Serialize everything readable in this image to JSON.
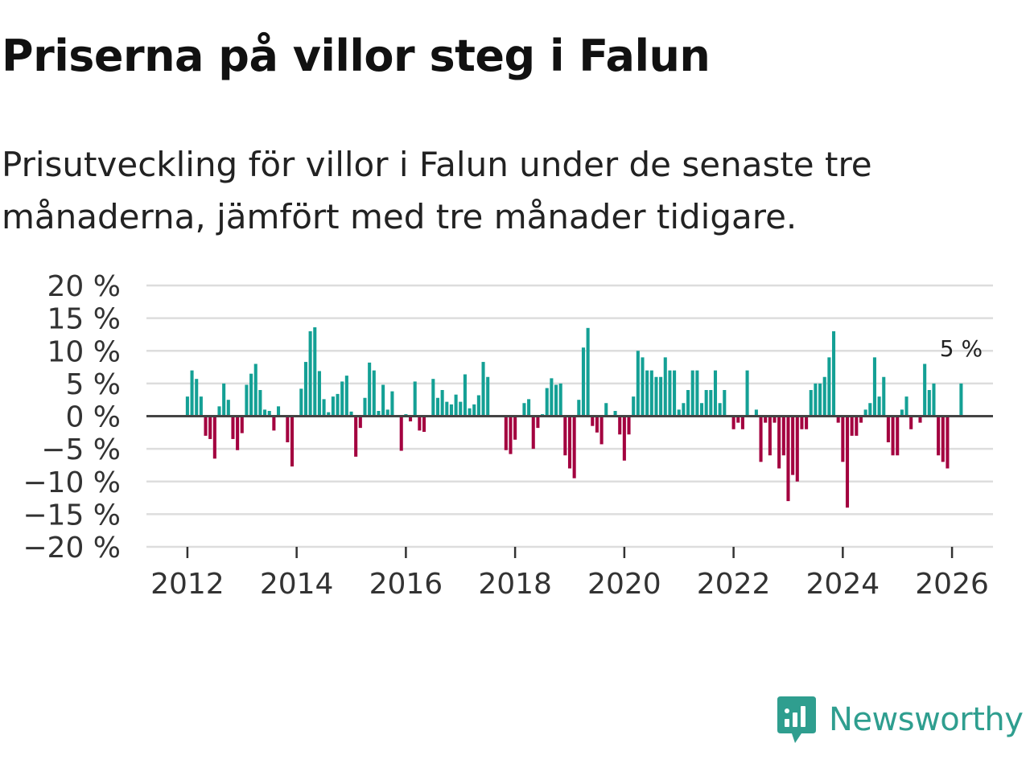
{
  "title": "Priserna på villor steg i Falun",
  "subtitle": "Prisutveckling för villor i Falun under de senaste tre månaderna, jämfört med tre månader tidigare.",
  "brand": {
    "name": "Newsworthy",
    "icon": "newsworthy-logo-icon"
  },
  "colors": {
    "positive": "#14a095",
    "negative": "#a3003f",
    "grid": "#dddddd",
    "zero": "#444444"
  },
  "chart_data": {
    "type": "bar",
    "title": "Priserna på villor steg i Falun",
    "xlabel": "",
    "ylabel": "",
    "ylim": [
      -20,
      20
    ],
    "yticks": [
      20,
      15,
      10,
      5,
      0,
      -5,
      -10,
      -15,
      -20
    ],
    "ytick_labels": [
      "20 %",
      "15 %",
      "10 %",
      "5 %",
      "0 %",
      "−5 %",
      "−10 %",
      "−15 %",
      "−20 %"
    ],
    "xticks": [
      2012,
      2014,
      2016,
      2018,
      2020,
      2022,
      2024,
      2026
    ],
    "xtick_labels": [
      "2012",
      "2014",
      "2016",
      "2018",
      "2020",
      "2022",
      "2024",
      "2026"
    ],
    "xlim": [
      2011.25,
      2026.75
    ],
    "start": [
      2012,
      1
    ],
    "annotation": {
      "text": "5 %",
      "month": "2026-01"
    },
    "values": [
      3,
      7,
      5.7,
      3,
      -3,
      -3.5,
      -6.5,
      1.5,
      5,
      2.5,
      -3.5,
      -5.2,
      -2.6,
      4.8,
      6.5,
      8,
      4,
      1,
      0.8,
      -2.2,
      1.5,
      0,
      -4,
      -7.7,
      0,
      4.2,
      8.3,
      13,
      13.6,
      6.9,
      2.6,
      0.6,
      3,
      3.4,
      5.3,
      6.2,
      0.7,
      -6.2,
      -1.8,
      2.8,
      8.2,
      7,
      0.8,
      4.8,
      1,
      3.8,
      0,
      -5.3,
      0.3,
      -0.8,
      5.3,
      -2.2,
      -2.4,
      0,
      5.7,
      2.8,
      4,
      2.2,
      1.8,
      3.3,
      2.2,
      6.4,
      1.2,
      1.8,
      3.2,
      8.3,
      6,
      0,
      0,
      0,
      -5.2,
      -5.8,
      -3.6,
      0,
      2,
      2.6,
      -5,
      -1.8,
      0.3,
      4.3,
      5.8,
      4.8,
      5,
      -6,
      -8,
      -9.5,
      2.5,
      10.5,
      13.5,
      -1.5,
      -2.5,
      -4.3,
      2,
      0,
      0.8,
      -2.8,
      -6.8,
      -2.8,
      3,
      10,
      9,
      7,
      7,
      6,
      6,
      9,
      7,
      7,
      1,
      2,
      4,
      7,
      7,
      2,
      4,
      4,
      7,
      2,
      4,
      0,
      -2,
      -1,
      -2,
      7,
      0,
      1,
      -7,
      -1,
      -6,
      -1,
      -8,
      -6,
      -13,
      -9,
      -10,
      -2,
      -2,
      4,
      5,
      5,
      6,
      9,
      13,
      -1,
      -7,
      -14,
      -3,
      -3,
      -1,
      1,
      2,
      9,
      3,
      6,
      -4,
      -6,
      -6,
      1,
      3,
      -2,
      0,
      -1,
      8,
      4,
      5,
      -6,
      -7,
      -8,
      0,
      0,
      5
    ]
  }
}
